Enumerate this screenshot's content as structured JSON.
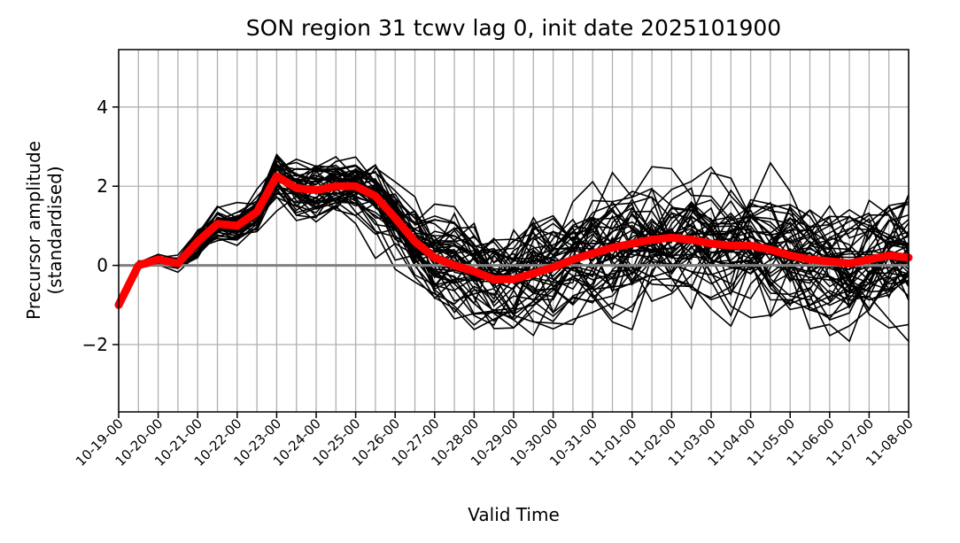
{
  "chart_data": {
    "type": "line",
    "title": "SON region 31 tcwv lag 0, init date 2025101900",
    "xlabel": "Valid Time",
    "ylabel": "Precursor amplitude",
    "ylabel2": "(standardised)",
    "x_tick_labels": [
      "10-19-00",
      "10-20-00",
      "10-21-00",
      "10-22-00",
      "10-23-00",
      "10-24-00",
      "10-25-00",
      "10-26-00",
      "10-27-00",
      "10-28-00",
      "10-29-00",
      "10-30-00",
      "10-31-00",
      "11-01-00",
      "11-02-00",
      "11-03-00",
      "11-04-00",
      "11-05-00",
      "11-06-00",
      "11-07-00",
      "11-08-00"
    ],
    "x_index_range": [
      0,
      40
    ],
    "ylim": [
      -3.7,
      5.45
    ],
    "y_ticks": [
      -2,
      0,
      2,
      4
    ],
    "y_tick_labels": [
      "−2",
      "0",
      "2",
      "4"
    ],
    "grid": true,
    "legend": "none",
    "zero_line": {
      "value": 0,
      "color": "#808080"
    },
    "ensemble_color": "#000000",
    "mean_color": "#ff0000",
    "ensemble_count": 50,
    "ensemble_mean": [
      -1.0,
      0.0,
      0.15,
      0.05,
      0.6,
      1.05,
      1.0,
      1.35,
      2.25,
      1.95,
      1.9,
      2.0,
      2.0,
      1.75,
      1.2,
      0.6,
      0.2,
      0.0,
      -0.15,
      -0.35,
      -0.35,
      -0.2,
      -0.05,
      0.15,
      0.3,
      0.45,
      0.55,
      0.65,
      0.7,
      0.65,
      0.55,
      0.5,
      0.5,
      0.4,
      0.25,
      0.15,
      0.1,
      0.05,
      0.15,
      0.25,
      0.2
    ],
    "ensemble_spread": [
      0.0,
      0.1,
      0.15,
      0.15,
      0.3,
      0.35,
      0.35,
      0.45,
      0.6,
      0.65,
      0.65,
      0.65,
      0.65,
      0.7,
      0.75,
      0.8,
      0.85,
      0.9,
      0.95,
      1.0,
      1.05,
      1.1,
      1.1,
      1.15,
      1.15,
      1.2,
      1.2,
      1.2,
      1.2,
      1.2,
      1.2,
      1.2,
      1.2,
      1.2,
      1.2,
      1.2,
      1.2,
      1.2,
      1.25,
      1.3,
      1.3
    ]
  }
}
